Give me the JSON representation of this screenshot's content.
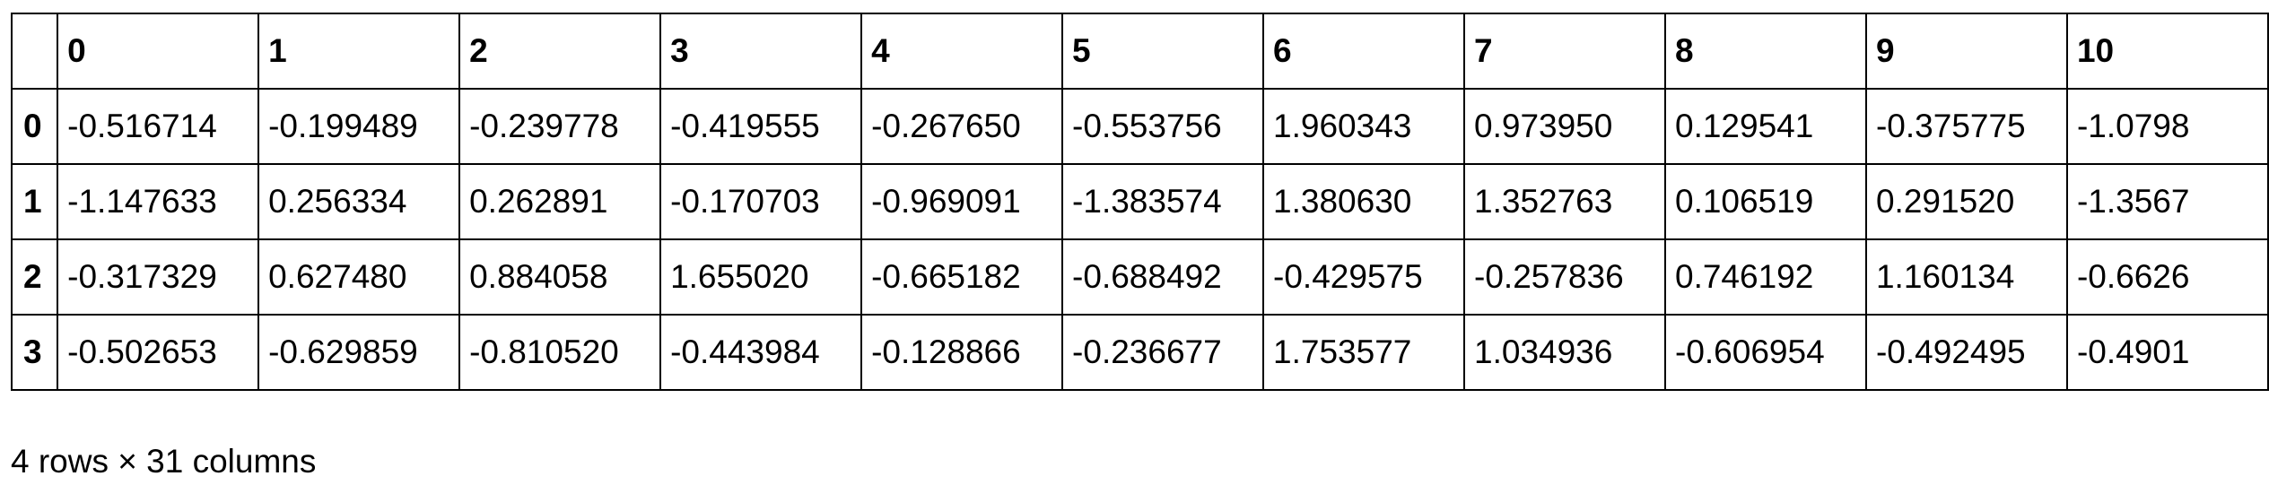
{
  "table": {
    "columns": [
      "",
      "0",
      "1",
      "2",
      "3",
      "4",
      "5",
      "6",
      "7",
      "8",
      "9",
      "10"
    ],
    "rows": [
      {
        "index": "0",
        "cells": [
          "-0.516714",
          "-0.199489",
          "-0.239778",
          "-0.419555",
          "-0.267650",
          "-0.553756",
          "1.960343",
          "0.973950",
          "0.129541",
          "-0.375775",
          "-1.0798"
        ]
      },
      {
        "index": "1",
        "cells": [
          "-1.147633",
          "0.256334",
          "0.262891",
          "-0.170703",
          "-0.969091",
          "-1.383574",
          "1.380630",
          "1.352763",
          "0.106519",
          "0.291520",
          "-1.3567"
        ]
      },
      {
        "index": "2",
        "cells": [
          "-0.317329",
          "0.627480",
          "0.884058",
          "1.655020",
          "-0.665182",
          "-0.688492",
          "-0.429575",
          "-0.257836",
          "0.746192",
          "1.160134",
          "-0.6626"
        ]
      },
      {
        "index": "3",
        "cells": [
          "-0.502653",
          "-0.629859",
          "-0.810520",
          "-0.443984",
          "-0.128866",
          "-0.236677",
          "1.753577",
          "1.034936",
          "-0.606954",
          "-0.492495",
          "-0.4901"
        ]
      }
    ]
  },
  "caption": "4 rows × 31 columns"
}
